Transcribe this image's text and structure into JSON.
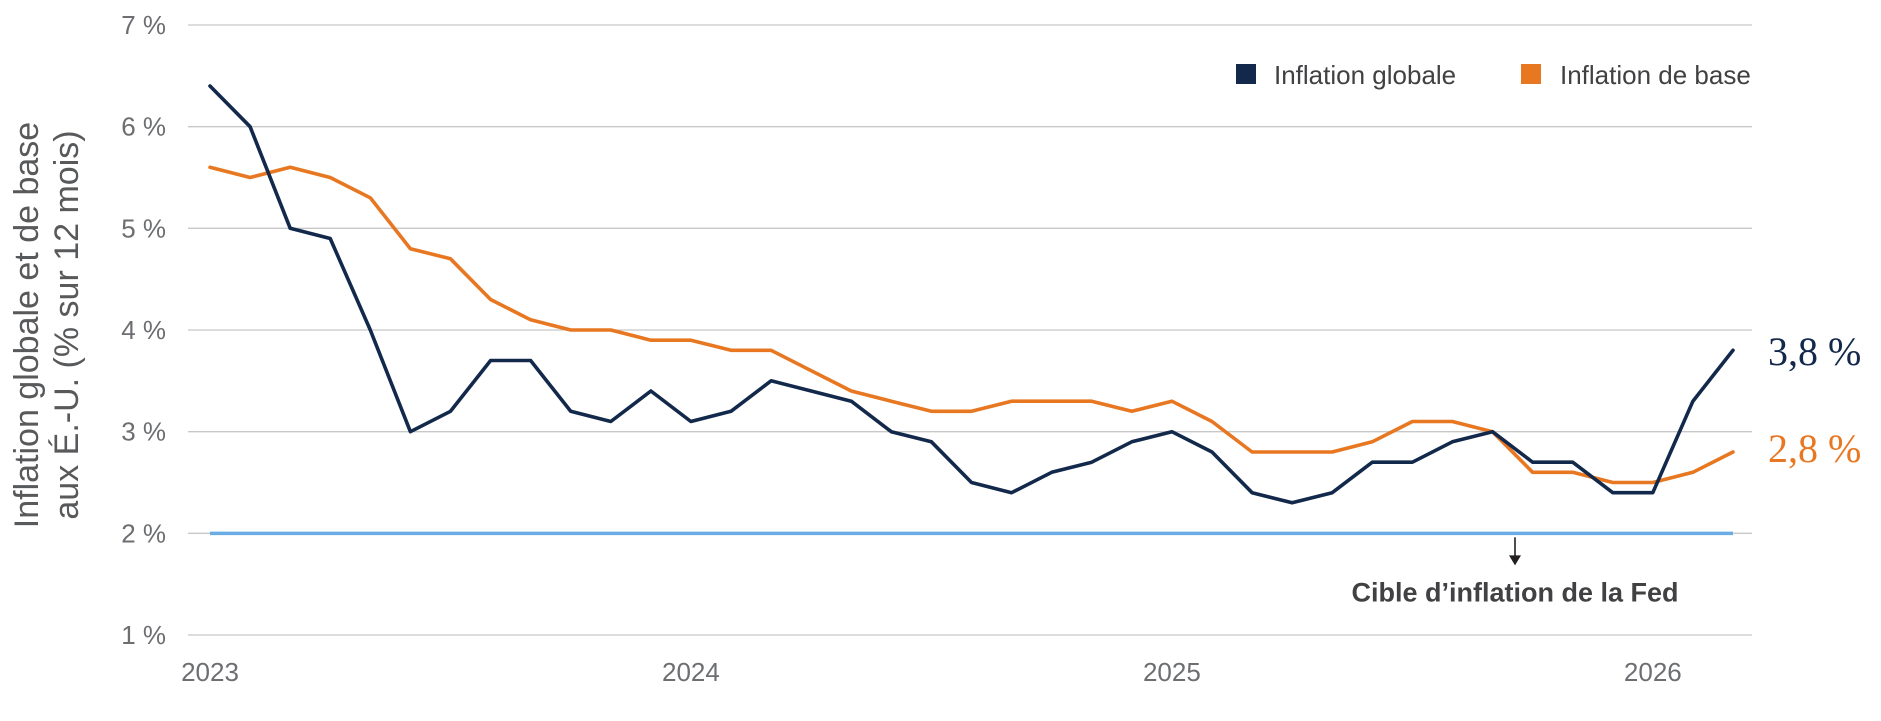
{
  "chart_data": {
    "type": "line",
    "ylabel_lines": [
      "Inflation globale et de base",
      "aux É.-U. (% sur 12 mois)"
    ],
    "ylim": [
      1,
      7
    ],
    "y_ticks": [
      1,
      2,
      3,
      4,
      5,
      6,
      7
    ],
    "y_tick_labels": [
      "1 %",
      "2 %",
      "3 %",
      "4 %",
      "5 %",
      "6 %",
      "7 %"
    ],
    "x_tick_labels": [
      "2023",
      "2024",
      "2025",
      "2026"
    ],
    "grid": "horizontal",
    "legend_position": "top-right",
    "series": [
      {
        "name": "Inflation globale",
        "color": "#13294b",
        "values": [
          6.4,
          6.0,
          5.0,
          4.9,
          4.0,
          3.0,
          3.2,
          3.7,
          3.7,
          3.2,
          3.1,
          3.4,
          3.1,
          3.2,
          3.5,
          3.4,
          3.3,
          3.0,
          2.9,
          2.5,
          2.4,
          2.6,
          2.7,
          2.9,
          3.0,
          2.8,
          2.4,
          2.3,
          2.4,
          2.7,
          2.7,
          2.9,
          3.0,
          2.7,
          2.7,
          2.4,
          2.4,
          3.3,
          3.8
        ],
        "end_label": "3,8 %"
      },
      {
        "name": "Inflation de base",
        "color": "#e87722",
        "values": [
          5.6,
          5.5,
          5.6,
          5.5,
          5.3,
          4.8,
          4.7,
          4.3,
          4.1,
          4.0,
          4.0,
          3.9,
          3.9,
          3.8,
          3.8,
          3.6,
          3.4,
          3.3,
          3.2,
          3.2,
          3.3,
          3.3,
          3.3,
          3.2,
          3.3,
          3.1,
          2.8,
          2.8,
          2.8,
          2.9,
          3.1,
          3.1,
          3.0,
          2.6,
          2.6,
          2.5,
          2.5,
          2.6,
          2.8
        ],
        "end_label": "2,8 %"
      }
    ],
    "reference_line": {
      "value": 2,
      "color": "#6cace4",
      "label": "Cible d’inflation de la Fed"
    }
  }
}
